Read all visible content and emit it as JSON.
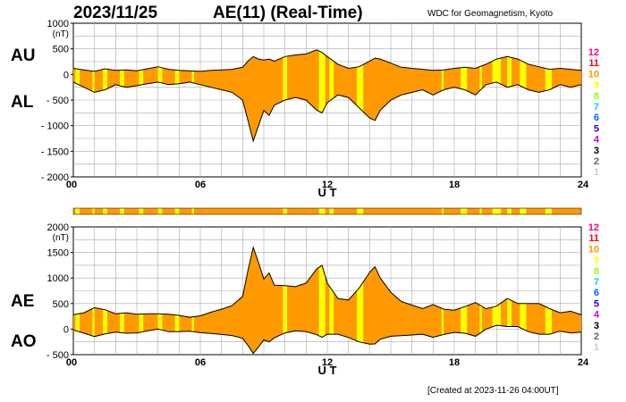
{
  "header": {
    "date": "2023/11/25",
    "title": "AE(11) (Real-Time)",
    "org": "WDC for Geomagnetism, Kyoto",
    "created": "[Created at 2023-11-26 04:00UT]"
  },
  "legend_counts": [
    "12",
    "11",
    "10",
    "9",
    "8",
    "7",
    "6",
    "5",
    "4",
    "3",
    "2",
    "1"
  ],
  "legend_colors": [
    "#ff0080",
    "#ff0000",
    "#ff9900",
    "#ffff00",
    "#99ff00",
    "#00ccff",
    "#0066ff",
    "#3300cc",
    "#cc00cc",
    "#000000",
    "#666666",
    "#cccccc"
  ],
  "colors": {
    "fill_main": "#ff9900",
    "fill_alt": "#ffff00",
    "line": "#000000",
    "grid": "#aaaaaa"
  },
  "chart_data": [
    {
      "type": "area",
      "panel": "top",
      "series": [
        {
          "name": "AU",
          "x": [
            0,
            0.5,
            1,
            1.5,
            2,
            2.5,
            3,
            3.5,
            4,
            4.5,
            5,
            5.5,
            6,
            6.5,
            7,
            7.5,
            8,
            8.25,
            8.5,
            8.75,
            9,
            9.25,
            9.5,
            10,
            10.5,
            11,
            11.5,
            11.75,
            12,
            12.5,
            13,
            13.5,
            14,
            14.25,
            14.5,
            15,
            15.5,
            16,
            16.5,
            17,
            17.5,
            18,
            18.5,
            19,
            19.5,
            20,
            20.5,
            21,
            21.5,
            22,
            22.5,
            23,
            23.5,
            24
          ],
          "values": [
            120,
            90,
            60,
            110,
            80,
            90,
            70,
            110,
            150,
            100,
            80,
            70,
            60,
            80,
            90,
            100,
            140,
            260,
            350,
            300,
            280,
            300,
            260,
            350,
            380,
            400,
            480,
            430,
            350,
            200,
            120,
            150,
            260,
            320,
            300,
            220,
            140,
            120,
            100,
            80,
            90,
            120,
            140,
            120,
            200,
            300,
            350,
            300,
            200,
            150,
            100,
            120,
            100,
            80
          ]
        },
        {
          "name": "AL",
          "x": [
            0,
            0.5,
            1,
            1.5,
            2,
            2.5,
            3,
            3.5,
            4,
            4.5,
            5,
            5.5,
            6,
            6.5,
            7,
            7.5,
            8,
            8.25,
            8.5,
            8.75,
            9,
            9.25,
            9.5,
            10,
            10.5,
            11,
            11.5,
            11.75,
            12,
            12.5,
            13,
            13.5,
            14,
            14.25,
            14.5,
            15,
            15.5,
            16,
            16.5,
            17,
            17.5,
            18,
            18.5,
            19,
            19.5,
            20,
            20.5,
            21,
            21.5,
            22,
            22.5,
            23,
            23.5,
            24
          ],
          "values": [
            -150,
            -250,
            -350,
            -300,
            -200,
            -250,
            -220,
            -180,
            -150,
            -200,
            -180,
            -150,
            -200,
            -250,
            -300,
            -350,
            -500,
            -900,
            -1300,
            -1000,
            -700,
            -800,
            -600,
            -500,
            -450,
            -500,
            -700,
            -750,
            -550,
            -400,
            -450,
            -650,
            -850,
            -900,
            -700,
            -500,
            -400,
            -350,
            -300,
            -400,
            -300,
            -250,
            -300,
            -400,
            -200,
            -150,
            -250,
            -200,
            -300,
            -350,
            -300,
            -200,
            -250,
            -200
          ]
        }
      ],
      "xticks": [
        "00",
        "06",
        "12",
        "18",
        "24"
      ],
      "xlabel": "U T",
      "ylabel": "(nT)",
      "ylim": [
        -2000,
        1000
      ],
      "yticks": [
        "1000",
        "500",
        "0",
        "- 500",
        "- 1000",
        "- 1500",
        "- 2000"
      ],
      "side_labels": [
        "AU",
        "AL"
      ],
      "grid": true
    },
    {
      "type": "area",
      "panel": "bottom",
      "series": [
        {
          "name": "AE",
          "x": [
            0,
            0.5,
            1,
            1.5,
            2,
            2.5,
            3,
            3.5,
            4,
            4.5,
            5,
            5.5,
            6,
            6.5,
            7,
            7.5,
            8,
            8.25,
            8.5,
            8.75,
            9,
            9.25,
            9.5,
            10,
            10.5,
            11,
            11.5,
            11.75,
            12,
            12.5,
            13,
            13.5,
            14,
            14.25,
            14.5,
            15,
            15.5,
            16,
            16.5,
            17,
            17.5,
            18,
            18.5,
            19,
            19.5,
            20,
            20.5,
            21,
            21.5,
            22,
            22.5,
            23,
            23.5,
            24
          ],
          "values": [
            280,
            320,
            420,
            380,
            300,
            320,
            290,
            300,
            300,
            290,
            270,
            230,
            260,
            330,
            390,
            460,
            640,
            1150,
            1600,
            1300,
            980,
            1100,
            860,
            850,
            830,
            900,
            1180,
            1250,
            900,
            600,
            570,
            800,
            1110,
            1220,
            1000,
            720,
            540,
            470,
            400,
            480,
            390,
            370,
            440,
            520,
            400,
            450,
            600,
            500,
            500,
            500,
            400,
            320,
            350,
            280
          ]
        },
        {
          "name": "AO",
          "x": [
            0,
            0.5,
            1,
            1.5,
            2,
            2.5,
            3,
            3.5,
            4,
            4.5,
            5,
            5.5,
            6,
            6.5,
            7,
            7.5,
            8,
            8.25,
            8.5,
            8.75,
            9,
            9.25,
            9.5,
            10,
            10.5,
            11,
            11.5,
            11.75,
            12,
            12.5,
            13,
            13.5,
            14,
            14.25,
            14.5,
            15,
            15.5,
            16,
            16.5,
            17,
            17.5,
            18,
            18.5,
            19,
            19.5,
            20,
            20.5,
            21,
            21.5,
            22,
            22.5,
            23,
            23.5,
            24
          ],
          "values": [
            -15,
            -80,
            -145,
            -95,
            -60,
            -80,
            -75,
            -35,
            0,
            -50,
            -50,
            -40,
            -70,
            -85,
            -105,
            -125,
            -180,
            -320,
            -475,
            -350,
            -210,
            -250,
            -170,
            -75,
            -35,
            -50,
            -110,
            -160,
            -100,
            -100,
            -165,
            -250,
            -295,
            -290,
            -200,
            -140,
            -130,
            -115,
            -100,
            -160,
            -105,
            -65,
            -80,
            -140,
            0,
            75,
            50,
            50,
            -50,
            -100,
            -100,
            -40,
            -75,
            -60
          ]
        }
      ],
      "xticks": [
        "00",
        "06",
        "12",
        "18",
        "24"
      ],
      "xlabel": "U T",
      "ylabel": "(nT)",
      "ylim": [
        -500,
        2000
      ],
      "yticks": [
        "2000",
        "1500",
        "1000",
        "500",
        "0",
        "- 500"
      ],
      "side_labels": [
        "AE",
        "AO"
      ],
      "grid": true
    }
  ]
}
